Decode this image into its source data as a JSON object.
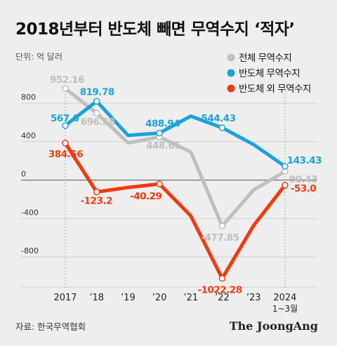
{
  "title": "2018년부터 반도체 빼면 무역수지 ‘적자’",
  "unit_label": "단위: 억 달러",
  "source": "자료: 한국무역협회",
  "brand": "The JoongAng",
  "colors": {
    "total": "#bfbfbf",
    "semiconductor": "#1aa3d9",
    "non_semiconductor": "#f23a0f",
    "background": "#eeeeee"
  },
  "chart_data": {
    "type": "line",
    "categories": [
      "2017",
      "’18",
      "’19",
      "’20",
      "’21",
      "’22",
      "’23",
      "2024"
    ],
    "x_sublabel": "1~3월",
    "ylim": [
      -1150,
      1050
    ],
    "y_ticks": [
      800,
      400,
      0,
      -400,
      -800
    ],
    "y_tick_labels": [
      "800",
      "400",
      "0",
      "-400",
      "-800"
    ],
    "legend_position": "top-right",
    "series": [
      {
        "key": "total",
        "name": "전체 무역수지",
        "values": [
          952.16,
          696.58,
          387,
          448.65,
          293,
          -477.85,
          -103,
          90.43
        ],
        "labels": [
          "952.16",
          "696.58",
          "",
          "448.65",
          "",
          "-477.85",
          "",
          "90.43"
        ]
      },
      {
        "key": "semiconductor",
        "name": "반도체 무역수지",
        "values": [
          567.6,
          819.78,
          465,
          488.94,
          665,
          544.43,
          370,
          143.43
        ],
        "labels": [
          "567.6",
          "819.78",
          "",
          "488.94",
          "",
          "544.43",
          "",
          "143.43"
        ]
      },
      {
        "key": "non_semiconductor",
        "name": "반도체 외 무역수지",
        "values": [
          384.56,
          -123.2,
          -77,
          -40.29,
          -372,
          -1022.28,
          -473,
          -53.0
        ],
        "labels": [
          "384.56",
          "-123.2",
          "",
          "-40.29",
          "",
          "-1022.28",
          "",
          "-53.0"
        ]
      }
    ]
  }
}
